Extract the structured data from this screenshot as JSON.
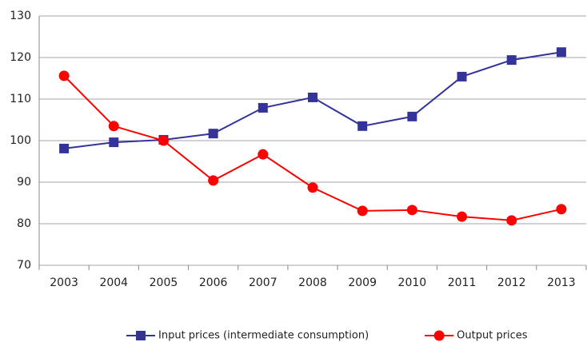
{
  "chart_data": {
    "type": "line",
    "categories": [
      "2003",
      "2004",
      "2005",
      "2006",
      "2007",
      "2008",
      "2009",
      "2010",
      "2011",
      "2012",
      "2013"
    ],
    "series": [
      {
        "name": "Input prices (intermediate consumption)",
        "color": "#333399",
        "marker": "square",
        "values": [
          98.1,
          99.6,
          100.2,
          101.7,
          107.9,
          110.4,
          103.5,
          105.8,
          115.4,
          119.4,
          121.3
        ]
      },
      {
        "name": "Output prices",
        "color": "#ff0000",
        "marker": "circle",
        "values": [
          115.6,
          103.5,
          100,
          90.4,
          96.7,
          88.7,
          83.1,
          83.3,
          81.7,
          80.8,
          83.5
        ]
      }
    ],
    "ylim": [
      70,
      130
    ],
    "yticks": [
      70,
      80,
      90,
      100,
      110,
      120,
      130
    ],
    "grid": true,
    "legend": "bottom"
  }
}
